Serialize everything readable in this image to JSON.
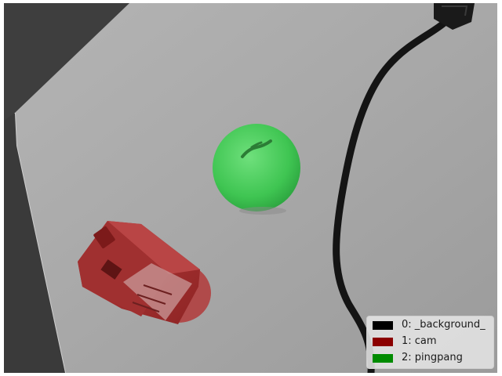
{
  "image": {
    "kind": "segmentation-overlay",
    "scene_colors": {
      "table": "#a6a6a6",
      "floor": "#4a4a4a",
      "cable": "#141414"
    }
  },
  "segments": [
    {
      "id": 1,
      "class": "cam",
      "color": "#8c1d1d"
    },
    {
      "id": 2,
      "class": "pingpang",
      "color": "#2fb84a"
    }
  ],
  "legend": {
    "items": [
      {
        "label": "0: _background_",
        "color": "#000000"
      },
      {
        "label": "1: cam",
        "color": "#8b0000"
      },
      {
        "label": "2: pingpang",
        "color": "#008b00"
      }
    ]
  }
}
